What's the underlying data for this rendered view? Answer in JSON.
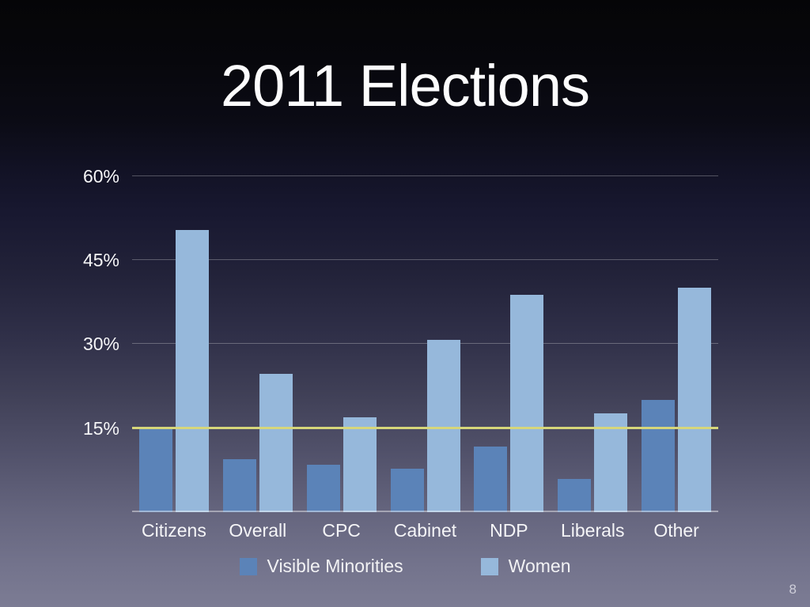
{
  "slide": {
    "title": "2011 Elections",
    "page_number": "8"
  },
  "chart_data": {
    "type": "bar",
    "title": "2011 Elections",
    "categories": [
      "Citizens",
      "Overall",
      "CPC",
      "Cabinet",
      "NDP",
      "Liberals",
      "Other"
    ],
    "series": [
      {
        "name": "Visible Minorities",
        "color": "#5b83b8",
        "values": [
          15.0,
          9.4,
          8.4,
          7.7,
          11.7,
          5.9,
          20.0
        ]
      },
      {
        "name": "Women",
        "color": "#96b8db",
        "values": [
          50.4,
          24.7,
          16.9,
          30.8,
          38.8,
          17.6,
          40.0
        ]
      }
    ],
    "xlabel": "",
    "ylabel": "",
    "y_ticks": [
      "60%",
      "45%",
      "30%",
      "15%"
    ],
    "y_tick_values": [
      60,
      45,
      30,
      15
    ],
    "ylim": [
      0,
      63.6
    ],
    "grid": true,
    "reference_line": {
      "value": 15,
      "color": "#d6d67a",
      "label": "15% threshold line"
    },
    "legend_position": "bottom"
  }
}
